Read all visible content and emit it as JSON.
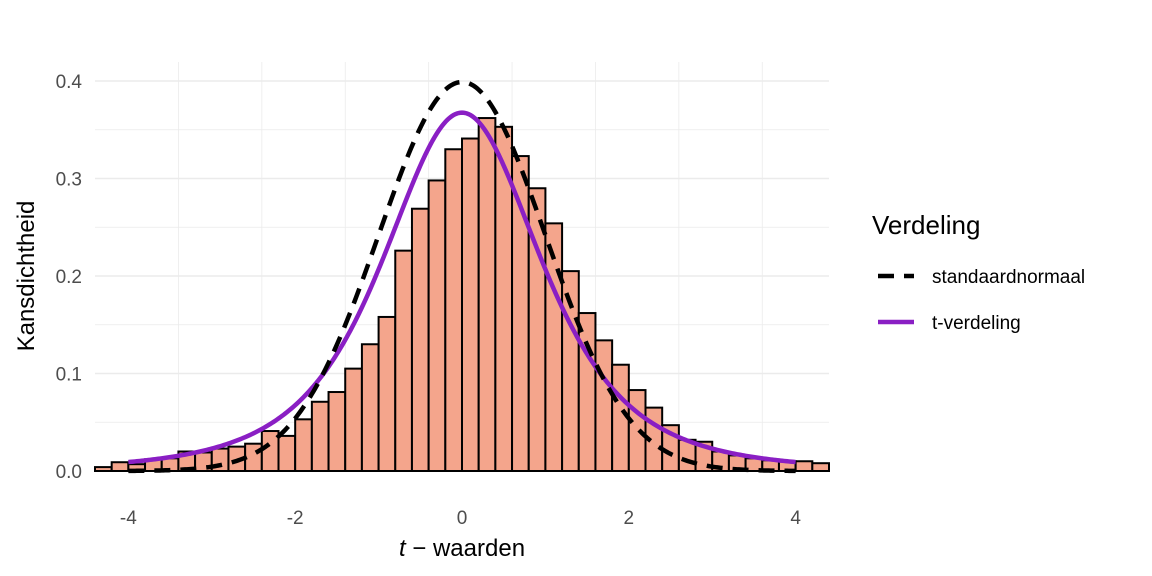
{
  "chart_data": {
    "type": "bar",
    "xlabel_italic": "t",
    "xlabel_rest": " − waarden",
    "ylabel": "Kansdichtheid",
    "xlim": [
      -4.4,
      4.4
    ],
    "ylim": [
      0,
      0.4
    ],
    "x_ticks": [
      -4,
      -2,
      0,
      2,
      4
    ],
    "x_tick_labels": [
      "-4",
      "-2",
      "0",
      "2",
      "4"
    ],
    "y_ticks": [
      0,
      0.1,
      0.2,
      0.3,
      0.4
    ],
    "y_tick_labels": [
      "0.0",
      "0.1",
      "0.2",
      "0.3",
      "0.4"
    ],
    "grid": true,
    "histogram": {
      "bin_width": 0.2,
      "first_bin_left": -4.4,
      "fill": "#f4a58c",
      "stroke": "#000000",
      "values": [
        0.004,
        0.009,
        0.007,
        0.012,
        0.013,
        0.02,
        0.019,
        0.023,
        0.025,
        0.028,
        0.041,
        0.036,
        0.053,
        0.071,
        0.081,
        0.105,
        0.13,
        0.158,
        0.226,
        0.269,
        0.298,
        0.33,
        0.341,
        0.362,
        0.353,
        0.323,
        0.29,
        0.254,
        0.205,
        0.162,
        0.134,
        0.109,
        0.083,
        0.065,
        0.047,
        0.032,
        0.03,
        0.02,
        0.016,
        0.013,
        0.011,
        0.01,
        0.01,
        0.008
      ]
    },
    "series": [
      {
        "name": "standaardnormaal",
        "kind": "normal",
        "color": "#000000",
        "dashed": true,
        "x_range": [
          -4,
          4
        ]
      },
      {
        "name": "t-verdeling",
        "kind": "t",
        "df": 3,
        "color": "#8a1fc4",
        "dashed": false,
        "x_range": [
          -4,
          4
        ]
      }
    ],
    "legend": {
      "title": "Verdeling",
      "placement": "right"
    }
  }
}
